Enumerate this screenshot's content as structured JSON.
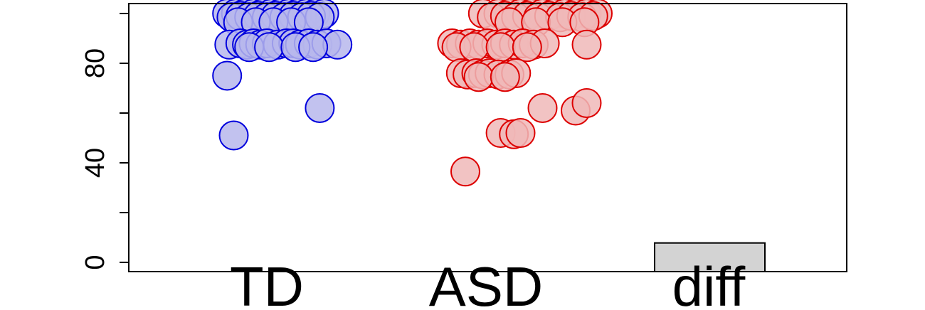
{
  "chart_data": {
    "type": "scatter",
    "title": "",
    "xlabel": "",
    "ylabel": "",
    "ylim": [
      0,
      104
    ],
    "y_ticks": [
      0,
      20,
      40,
      60,
      80,
      100
    ],
    "y_tick_labels": [
      "0",
      "",
      "40",
      "",
      "80",
      ""
    ],
    "grid": false,
    "categories": [
      "TD",
      "ASD",
      "diff"
    ],
    "diff_bar": {
      "value": 7.8,
      "fill": "#d3d3d3",
      "stroke": "#000000"
    },
    "series": [
      {
        "category": "TD",
        "fill": "#b7b7ec",
        "stroke": "#0000dd",
        "points": [
          [
            0.82,
            100
          ],
          [
            0.86,
            100
          ],
          [
            0.9,
            100
          ],
          [
            0.94,
            100
          ],
          [
            0.98,
            100
          ],
          [
            1.02,
            100
          ],
          [
            1.06,
            100
          ],
          [
            1.1,
            100
          ],
          [
            1.14,
            100
          ],
          [
            1.18,
            100
          ],
          [
            1.22,
            100
          ],
          [
            1.26,
            100
          ],
          [
            0.84,
            98.5
          ],
          [
            0.88,
            99
          ],
          [
            0.92,
            98.5
          ],
          [
            0.96,
            99
          ],
          [
            1.0,
            98.5
          ],
          [
            1.04,
            99
          ],
          [
            1.08,
            98.5
          ],
          [
            1.12,
            99
          ],
          [
            1.16,
            98.5
          ],
          [
            1.2,
            99
          ],
          [
            1.24,
            98.5
          ],
          [
            0.87,
            96.5
          ],
          [
            0.95,
            96.5
          ],
          [
            1.03,
            96.5
          ],
          [
            1.11,
            96.5
          ],
          [
            1.19,
            96.5
          ],
          [
            0.83,
            87.5
          ],
          [
            0.88,
            88
          ],
          [
            0.91,
            87.5
          ],
          [
            0.94,
            88
          ],
          [
            0.97,
            87.5
          ],
          [
            1.0,
            88
          ],
          [
            1.05,
            87.5
          ],
          [
            1.09,
            88
          ],
          [
            1.12,
            88
          ],
          [
            1.15,
            87.5
          ],
          [
            1.19,
            88
          ],
          [
            1.23,
            87.5
          ],
          [
            1.27,
            88
          ],
          [
            1.32,
            87.5
          ],
          [
            0.92,
            86.5
          ],
          [
            1.01,
            86.5
          ],
          [
            1.13,
            86.5
          ],
          [
            1.21,
            86.5
          ],
          [
            0.82,
            75
          ],
          [
            1.24,
            62
          ],
          [
            0.85,
            51
          ]
        ]
      },
      {
        "category": "ASD",
        "fill": "#f0b8b8",
        "stroke": "#dd0000",
        "points": [
          [
            1.98,
            100
          ],
          [
            2.05,
            100
          ],
          [
            2.1,
            100
          ],
          [
            2.15,
            100
          ],
          [
            2.2,
            100
          ],
          [
            2.25,
            100
          ],
          [
            2.3,
            100
          ],
          [
            2.35,
            100
          ],
          [
            2.4,
            100
          ],
          [
            2.45,
            100
          ],
          [
            2.5,
            100
          ],
          [
            2.02,
            98.5
          ],
          [
            2.08,
            99
          ],
          [
            2.13,
            98.5
          ],
          [
            2.18,
            99
          ],
          [
            2.23,
            98.5
          ],
          [
            2.28,
            99
          ],
          [
            2.33,
            98.5
          ],
          [
            2.38,
            99
          ],
          [
            2.43,
            98.5
          ],
          [
            2.48,
            99
          ],
          [
            2.1,
            96.5
          ],
          [
            2.22,
            96.5
          ],
          [
            2.34,
            96.5
          ],
          [
            2.44,
            96.5
          ],
          [
            1.84,
            88
          ],
          [
            1.88,
            87.5
          ],
          [
            1.92,
            88
          ],
          [
            1.96,
            87.5
          ],
          [
            2.0,
            88
          ],
          [
            2.04,
            87.5
          ],
          [
            2.08,
            88
          ],
          [
            2.12,
            87.5
          ],
          [
            2.16,
            88
          ],
          [
            2.21,
            87.5
          ],
          [
            2.26,
            88
          ],
          [
            2.45,
            87.5
          ],
          [
            1.86,
            86.5
          ],
          [
            1.94,
            86.5
          ],
          [
            2.06,
            86.5
          ],
          [
            2.18,
            86.5
          ],
          [
            1.88,
            76
          ],
          [
            1.91,
            75.5
          ],
          [
            1.95,
            76
          ],
          [
            1.98,
            75.5
          ],
          [
            2.01,
            76
          ],
          [
            2.05,
            75.5
          ],
          [
            2.1,
            75.5
          ],
          [
            2.13,
            76
          ],
          [
            1.96,
            74.5
          ],
          [
            2.08,
            74.5
          ],
          [
            2.25,
            62
          ],
          [
            2.4,
            61
          ],
          [
            2.45,
            64
          ],
          [
            2.06,
            52
          ],
          [
            2.12,
            51.5
          ],
          [
            2.15,
            52
          ],
          [
            1.9,
            36.5
          ]
        ]
      }
    ]
  }
}
